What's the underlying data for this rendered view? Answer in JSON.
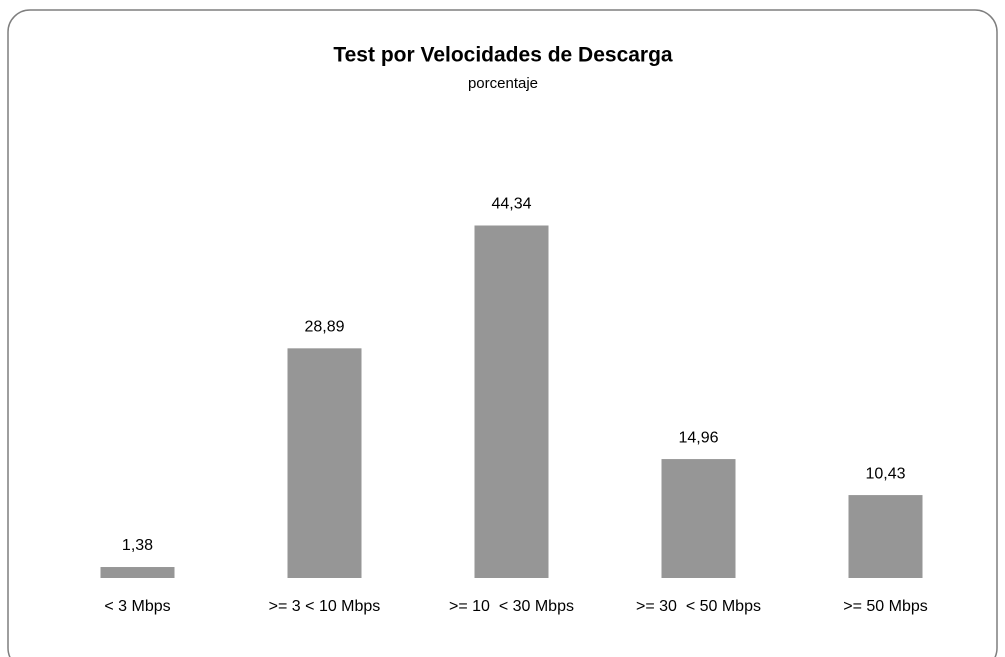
{
  "chart_data": {
    "type": "bar",
    "title": "Test por Velocidades de Descarga",
    "subtitle": "porcentaje",
    "categories": [
      "< 3 Mbps",
      ">= 3 < 10 Mbps",
      ">= 10  < 30 Mbps",
      ">= 30  < 50 Mbps",
      ">= 50 Mbps"
    ],
    "values": [
      1.38,
      28.89,
      44.34,
      14.96,
      10.43
    ],
    "value_labels": [
      "1,38",
      "28,89",
      "44,34",
      "14,96",
      "10,43"
    ],
    "color": "#969696",
    "ylim": [
      0,
      50
    ]
  }
}
